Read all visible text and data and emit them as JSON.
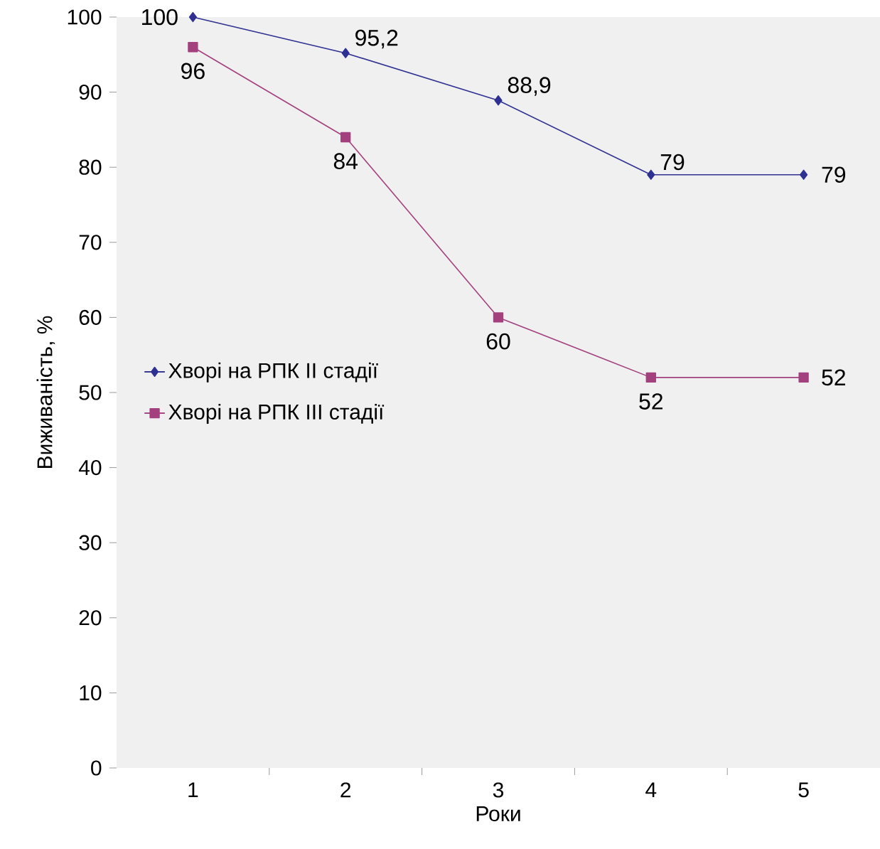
{
  "chart_data": {
    "type": "line",
    "xlabel": "Роки",
    "ylabel": "Виживаність, %",
    "categories": [
      "1",
      "2",
      "3",
      "4",
      "5"
    ],
    "ylim": [
      0,
      100
    ],
    "yticks": [
      0,
      10,
      20,
      30,
      40,
      50,
      60,
      70,
      80,
      90,
      100
    ],
    "legend": "left",
    "series": [
      {
        "name": "Хворі на РПК ІІ стадії",
        "color": "#2e3192",
        "marker": "diamond",
        "values": [
          100,
          95.2,
          88.9,
          79,
          79
        ],
        "value_labels": [
          "100",
          "95,2",
          "88,9",
          "79",
          "79"
        ]
      },
      {
        "name": "Хворі на РПК ІІІ стадії",
        "color": "#a3417f",
        "marker": "square",
        "values": [
          96,
          84,
          60,
          52,
          52
        ],
        "value_labels": [
          "96",
          "84",
          "60",
          "52",
          "52"
        ]
      }
    ]
  }
}
